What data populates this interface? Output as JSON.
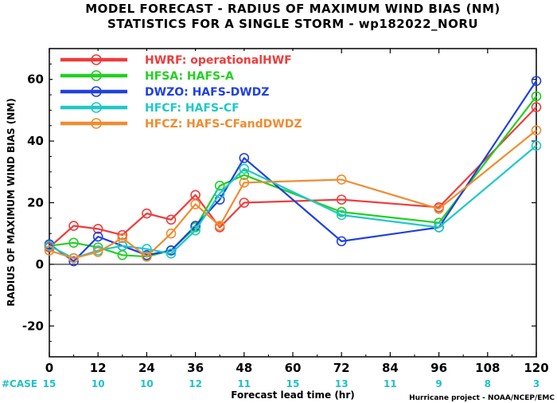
{
  "chart_data": {
    "type": "line",
    "title": "MODEL FORECAST - RADIUS OF MAXIMUM WIND BIAS (NM)",
    "subtitle": "STATISTICS FOR A SINGLE STORM - wp182022_NORU",
    "xlabel": "Forecast lead time (hr)",
    "ylabel": "RADIUS OF MAXIMUM WIND BIAS (NM)",
    "xlim": [
      0,
      120
    ],
    "ylim": [
      -30,
      70
    ],
    "xticks": [
      0,
      12,
      24,
      36,
      48,
      60,
      72,
      84,
      96,
      108,
      120
    ],
    "yticks": [
      -20,
      0,
      20,
      40,
      60
    ],
    "grid": false,
    "legend_position": "top-left",
    "case_label": "#CASE",
    "case_counts": [
      15,
      10,
      10,
      12,
      11,
      15,
      13,
      11,
      9,
      8,
      3
    ],
    "credit": "Hurricane project - NOAA/NCEP/EMC",
    "series": [
      {
        "name": "HWRF: operationalHWF",
        "color": "#ee3c3c",
        "x": [
          0,
          6,
          12,
          18,
          24,
          30,
          36,
          42,
          48,
          72,
          96,
          120
        ],
        "y": [
          5.5,
          12.5,
          11.5,
          9.5,
          16.5,
          14.5,
          22.5,
          12,
          20,
          21,
          18.5,
          51
        ]
      },
      {
        "name": "HFSA: HAFS-A",
        "color": "#22d022",
        "x": [
          0,
          6,
          12,
          18,
          24,
          30,
          36,
          42,
          48,
          72,
          96,
          120
        ],
        "y": [
          6,
          7,
          5.5,
          3,
          2.5,
          4.5,
          12,
          25.5,
          29,
          17,
          13.5,
          54.5
        ]
      },
      {
        "name": "DWZO: HAFS-DWDZ",
        "color": "#2040e0",
        "x": [
          0,
          6,
          12,
          18,
          24,
          30,
          36,
          42,
          48,
          72,
          96,
          120
        ],
        "y": [
          6.5,
          1,
          9,
          6,
          3,
          4.5,
          12.5,
          21,
          34.5,
          7.5,
          12,
          59.5
        ]
      },
      {
        "name": "HFCF: HAFS-CF",
        "color": "#20c8c8",
        "x": [
          0,
          6,
          12,
          18,
          24,
          30,
          36,
          42,
          48,
          72,
          96,
          120
        ],
        "y": [
          6,
          2,
          4.5,
          6,
          5,
          3.5,
          11,
          23,
          31,
          16,
          12,
          38.5
        ]
      },
      {
        "name": "HFCZ: HAFS-CFandDWDZ",
        "color": "#f08c30",
        "x": [
          0,
          6,
          12,
          18,
          24,
          30,
          36,
          42,
          48,
          72,
          96,
          120
        ],
        "y": [
          4.5,
          2,
          4,
          8.5,
          2.5,
          10,
          19.5,
          12.5,
          26.5,
          27.5,
          18,
          43.5
        ]
      }
    ]
  }
}
